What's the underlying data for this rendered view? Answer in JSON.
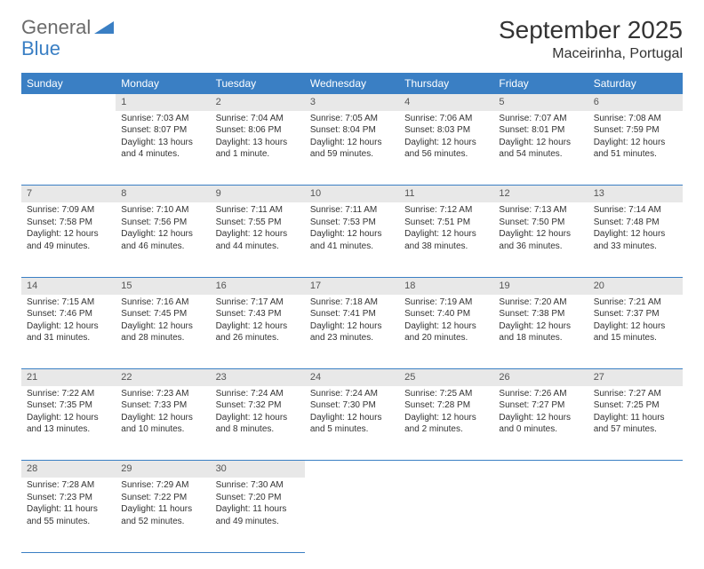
{
  "logo": {
    "part1": "General",
    "part2": "Blue"
  },
  "title": "September 2025",
  "location": "Maceirinha, Portugal",
  "colors": {
    "header_bg": "#3a7fc4",
    "header_text": "#ffffff",
    "daynum_bg": "#e8e8e8",
    "daynum_text": "#555555",
    "border": "#3a7fc4",
    "body_text": "#333333",
    "logo_gray": "#6b6b6b",
    "logo_blue": "#3a7fc4"
  },
  "weekdays": [
    "Sunday",
    "Monday",
    "Tuesday",
    "Wednesday",
    "Thursday",
    "Friday",
    "Saturday"
  ],
  "weeks": [
    [
      null,
      {
        "d": "1",
        "sr": "Sunrise: 7:03 AM",
        "ss": "Sunset: 8:07 PM",
        "dl": "Daylight: 13 hours and 4 minutes."
      },
      {
        "d": "2",
        "sr": "Sunrise: 7:04 AM",
        "ss": "Sunset: 8:06 PM",
        "dl": "Daylight: 13 hours and 1 minute."
      },
      {
        "d": "3",
        "sr": "Sunrise: 7:05 AM",
        "ss": "Sunset: 8:04 PM",
        "dl": "Daylight: 12 hours and 59 minutes."
      },
      {
        "d": "4",
        "sr": "Sunrise: 7:06 AM",
        "ss": "Sunset: 8:03 PM",
        "dl": "Daylight: 12 hours and 56 minutes."
      },
      {
        "d": "5",
        "sr": "Sunrise: 7:07 AM",
        "ss": "Sunset: 8:01 PM",
        "dl": "Daylight: 12 hours and 54 minutes."
      },
      {
        "d": "6",
        "sr": "Sunrise: 7:08 AM",
        "ss": "Sunset: 7:59 PM",
        "dl": "Daylight: 12 hours and 51 minutes."
      }
    ],
    [
      {
        "d": "7",
        "sr": "Sunrise: 7:09 AM",
        "ss": "Sunset: 7:58 PM",
        "dl": "Daylight: 12 hours and 49 minutes."
      },
      {
        "d": "8",
        "sr": "Sunrise: 7:10 AM",
        "ss": "Sunset: 7:56 PM",
        "dl": "Daylight: 12 hours and 46 minutes."
      },
      {
        "d": "9",
        "sr": "Sunrise: 7:11 AM",
        "ss": "Sunset: 7:55 PM",
        "dl": "Daylight: 12 hours and 44 minutes."
      },
      {
        "d": "10",
        "sr": "Sunrise: 7:11 AM",
        "ss": "Sunset: 7:53 PM",
        "dl": "Daylight: 12 hours and 41 minutes."
      },
      {
        "d": "11",
        "sr": "Sunrise: 7:12 AM",
        "ss": "Sunset: 7:51 PM",
        "dl": "Daylight: 12 hours and 38 minutes."
      },
      {
        "d": "12",
        "sr": "Sunrise: 7:13 AM",
        "ss": "Sunset: 7:50 PM",
        "dl": "Daylight: 12 hours and 36 minutes."
      },
      {
        "d": "13",
        "sr": "Sunrise: 7:14 AM",
        "ss": "Sunset: 7:48 PM",
        "dl": "Daylight: 12 hours and 33 minutes."
      }
    ],
    [
      {
        "d": "14",
        "sr": "Sunrise: 7:15 AM",
        "ss": "Sunset: 7:46 PM",
        "dl": "Daylight: 12 hours and 31 minutes."
      },
      {
        "d": "15",
        "sr": "Sunrise: 7:16 AM",
        "ss": "Sunset: 7:45 PM",
        "dl": "Daylight: 12 hours and 28 minutes."
      },
      {
        "d": "16",
        "sr": "Sunrise: 7:17 AM",
        "ss": "Sunset: 7:43 PM",
        "dl": "Daylight: 12 hours and 26 minutes."
      },
      {
        "d": "17",
        "sr": "Sunrise: 7:18 AM",
        "ss": "Sunset: 7:41 PM",
        "dl": "Daylight: 12 hours and 23 minutes."
      },
      {
        "d": "18",
        "sr": "Sunrise: 7:19 AM",
        "ss": "Sunset: 7:40 PM",
        "dl": "Daylight: 12 hours and 20 minutes."
      },
      {
        "d": "19",
        "sr": "Sunrise: 7:20 AM",
        "ss": "Sunset: 7:38 PM",
        "dl": "Daylight: 12 hours and 18 minutes."
      },
      {
        "d": "20",
        "sr": "Sunrise: 7:21 AM",
        "ss": "Sunset: 7:37 PM",
        "dl": "Daylight: 12 hours and 15 minutes."
      }
    ],
    [
      {
        "d": "21",
        "sr": "Sunrise: 7:22 AM",
        "ss": "Sunset: 7:35 PM",
        "dl": "Daylight: 12 hours and 13 minutes."
      },
      {
        "d": "22",
        "sr": "Sunrise: 7:23 AM",
        "ss": "Sunset: 7:33 PM",
        "dl": "Daylight: 12 hours and 10 minutes."
      },
      {
        "d": "23",
        "sr": "Sunrise: 7:24 AM",
        "ss": "Sunset: 7:32 PM",
        "dl": "Daylight: 12 hours and 8 minutes."
      },
      {
        "d": "24",
        "sr": "Sunrise: 7:24 AM",
        "ss": "Sunset: 7:30 PM",
        "dl": "Daylight: 12 hours and 5 minutes."
      },
      {
        "d": "25",
        "sr": "Sunrise: 7:25 AM",
        "ss": "Sunset: 7:28 PM",
        "dl": "Daylight: 12 hours and 2 minutes."
      },
      {
        "d": "26",
        "sr": "Sunrise: 7:26 AM",
        "ss": "Sunset: 7:27 PM",
        "dl": "Daylight: 12 hours and 0 minutes."
      },
      {
        "d": "27",
        "sr": "Sunrise: 7:27 AM",
        "ss": "Sunset: 7:25 PM",
        "dl": "Daylight: 11 hours and 57 minutes."
      }
    ],
    [
      {
        "d": "28",
        "sr": "Sunrise: 7:28 AM",
        "ss": "Sunset: 7:23 PM",
        "dl": "Daylight: 11 hours and 55 minutes."
      },
      {
        "d": "29",
        "sr": "Sunrise: 7:29 AM",
        "ss": "Sunset: 7:22 PM",
        "dl": "Daylight: 11 hours and 52 minutes."
      },
      {
        "d": "30",
        "sr": "Sunrise: 7:30 AM",
        "ss": "Sunset: 7:20 PM",
        "dl": "Daylight: 11 hours and 49 minutes."
      },
      null,
      null,
      null,
      null
    ]
  ]
}
